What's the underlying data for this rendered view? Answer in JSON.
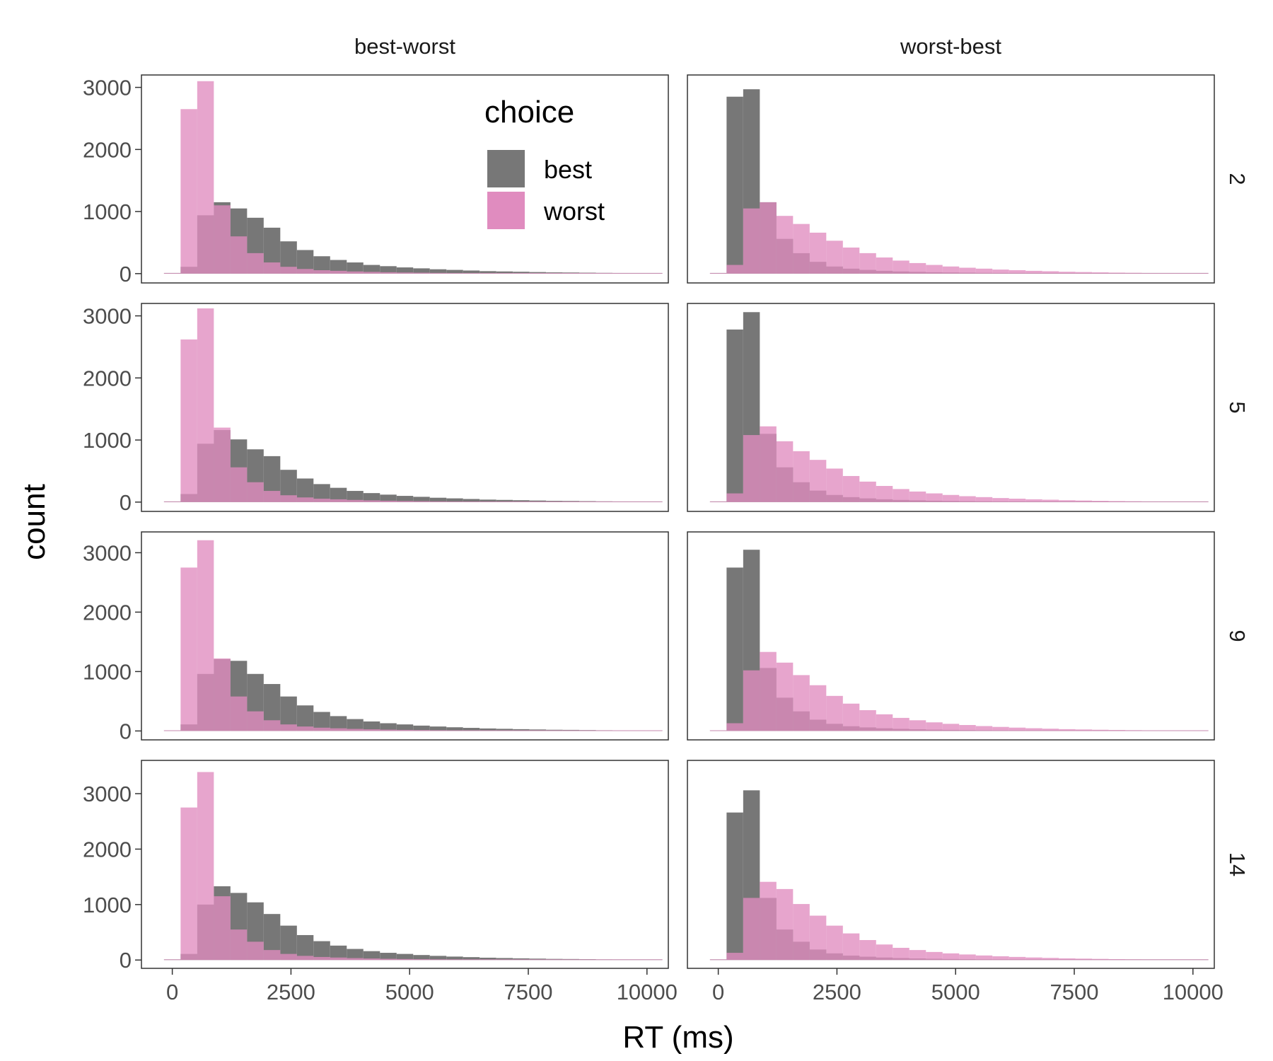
{
  "chart_data": {
    "type": "bar",
    "subtype": "histogram",
    "xlabel": "RT (ms)",
    "ylabel": "count",
    "column_facets": [
      "best-worst",
      "worst-best"
    ],
    "row_facets": [
      "2",
      "5",
      "9",
      "14"
    ],
    "x_ticks": [
      0,
      2500,
      5000,
      7500,
      10000
    ],
    "x_tick_labels": [
      "0",
      "2500",
      "5000",
      "7500",
      "10000"
    ],
    "y_ticks": [
      0,
      1000,
      2000,
      3000
    ],
    "y_tick_labels": [
      "0",
      "1000",
      "2000",
      "3000"
    ],
    "xlim": [
      -650,
      10450
    ],
    "ylim_by_row": [
      [
        -150,
        3200
      ],
      [
        -150,
        3200
      ],
      [
        -150,
        3350
      ],
      [
        -150,
        3600
      ]
    ],
    "bin_edges": [
      -175,
      175,
      525,
      875,
      1225,
      1575,
      1925,
      2275,
      2625,
      2975,
      3325,
      3675,
      4025,
      4375,
      4725,
      5075,
      5425,
      5775,
      6125,
      6475,
      6825,
      7175,
      7525,
      7875,
      8225,
      8575,
      8925,
      9275,
      9625,
      9975,
      10325
    ],
    "grid": false,
    "legend": {
      "title": "choice",
      "position": "inside-top-right",
      "entries": [
        {
          "label": "best",
          "color": "#777777"
        },
        {
          "label": "worst",
          "color": "#e08cbf"
        }
      ]
    },
    "colors": {
      "best": "#777777",
      "worst": "#e08cbf",
      "overlap": "#b35d8e",
      "panel_border": "#333333"
    },
    "panels": [
      {
        "column": "best-worst",
        "row": "2",
        "series": [
          {
            "name": "best",
            "values": [
              0,
              110,
              940,
              1150,
              1050,
              900,
              740,
              520,
              380,
              280,
              220,
              180,
              140,
              120,
              100,
              85,
              70,
              60,
              50,
              40,
              35,
              30,
              25,
              20,
              18,
              15,
              12,
              10,
              8,
              5
            ]
          },
          {
            "name": "worst",
            "values": [
              10,
              2650,
              3100,
              1100,
              600,
              330,
              180,
              110,
              75,
              55,
              45,
              35,
              28,
              22,
              18,
              15,
              12,
              10,
              8,
              6,
              5,
              4,
              3,
              3,
              2,
              2,
              1,
              1,
              1,
              1
            ]
          }
        ]
      },
      {
        "column": "worst-best",
        "row": "2",
        "series": [
          {
            "name": "best",
            "values": [
              10,
              2850,
              2970,
              1150,
              560,
              330,
              190,
              115,
              80,
              60,
              45,
              35,
              28,
              22,
              18,
              15,
              12,
              10,
              8,
              6,
              5,
              4,
              3,
              3,
              2,
              2,
              1,
              1,
              1,
              1
            ]
          },
          {
            "name": "worst",
            "values": [
              0,
              140,
              1050,
              1150,
              930,
              800,
              660,
              530,
              420,
              330,
              260,
              210,
              170,
              140,
              115,
              95,
              80,
              65,
              55,
              45,
              38,
              30,
              25,
              20,
              16,
              13,
              10,
              8,
              6,
              4
            ]
          }
        ]
      },
      {
        "column": "best-worst",
        "row": "5",
        "series": [
          {
            "name": "best",
            "values": [
              0,
              130,
              940,
              1160,
              1010,
              850,
              740,
              520,
              380,
              290,
              230,
              180,
              145,
              120,
              100,
              85,
              70,
              60,
              50,
              40,
              35,
              30,
              25,
              20,
              18,
              15,
              12,
              10,
              8,
              5
            ]
          },
          {
            "name": "worst",
            "values": [
              10,
              2620,
              3120,
              1200,
              560,
              320,
              180,
              110,
              75,
              55,
              45,
              35,
              28,
              22,
              18,
              15,
              12,
              10,
              8,
              6,
              5,
              4,
              3,
              3,
              2,
              2,
              1,
              1,
              1,
              1
            ]
          }
        ]
      },
      {
        "column": "worst-best",
        "row": "5",
        "series": [
          {
            "name": "best",
            "values": [
              10,
              2780,
              3060,
              1100,
              560,
              320,
              185,
              115,
              80,
              60,
              45,
              35,
              28,
              22,
              18,
              15,
              12,
              10,
              8,
              6,
              5,
              4,
              3,
              3,
              2,
              2,
              1,
              1,
              1,
              1
            ]
          },
          {
            "name": "worst",
            "values": [
              0,
              140,
              1080,
              1220,
              980,
              820,
              680,
              540,
              420,
              330,
              260,
              210,
              170,
              140,
              115,
              95,
              80,
              65,
              55,
              45,
              38,
              30,
              25,
              20,
              16,
              13,
              10,
              8,
              6,
              4
            ]
          }
        ]
      },
      {
        "column": "best-worst",
        "row": "9",
        "series": [
          {
            "name": "best",
            "values": [
              0,
              110,
              960,
              1210,
              1180,
              960,
              790,
              580,
              430,
              320,
              250,
              200,
              160,
              130,
              110,
              90,
              75,
              62,
              52,
              42,
              36,
              30,
              25,
              20,
              18,
              15,
              12,
              10,
              8,
              5
            ]
          },
          {
            "name": "worst",
            "values": [
              10,
              2750,
              3210,
              1220,
              580,
              330,
              180,
              110,
              75,
              55,
              45,
              35,
              28,
              22,
              18,
              15,
              12,
              10,
              8,
              6,
              5,
              4,
              3,
              3,
              2,
              2,
              1,
              1,
              1,
              1
            ]
          }
        ]
      },
      {
        "column": "worst-best",
        "row": "9",
        "series": [
          {
            "name": "best",
            "values": [
              10,
              2750,
              3050,
              1060,
              560,
              330,
              190,
              120,
              80,
              60,
              45,
              35,
              28,
              22,
              18,
              15,
              12,
              10,
              8,
              6,
              5,
              4,
              3,
              3,
              2,
              2,
              1,
              1,
              1,
              1
            ]
          },
          {
            "name": "worst",
            "values": [
              0,
              130,
              1020,
              1330,
              1150,
              940,
              770,
              590,
              460,
              350,
              280,
              220,
              180,
              145,
              120,
              100,
              82,
              68,
              56,
              46,
              38,
              30,
              25,
              20,
              16,
              13,
              10,
              8,
              6,
              4
            ]
          }
        ]
      },
      {
        "column": "best-worst",
        "row": "14",
        "series": [
          {
            "name": "best",
            "values": [
              0,
              110,
              1000,
              1330,
              1210,
              1040,
              830,
              620,
              450,
              340,
              260,
              200,
              160,
              130,
              110,
              90,
              75,
              62,
              52,
              42,
              36,
              30,
              25,
              20,
              18,
              15,
              12,
              10,
              8,
              5
            ]
          },
          {
            "name": "worst",
            "values": [
              10,
              2750,
              3390,
              1150,
              550,
              330,
              180,
              110,
              75,
              55,
              45,
              35,
              28,
              22,
              18,
              15,
              12,
              10,
              8,
              6,
              5,
              4,
              3,
              3,
              2,
              2,
              1,
              1,
              1,
              1
            ]
          }
        ]
      },
      {
        "column": "worst-best",
        "row": "14",
        "series": [
          {
            "name": "best",
            "values": [
              10,
              2660,
              3060,
              1120,
              550,
              330,
              190,
              120,
              80,
              60,
              45,
              35,
              28,
              22,
              18,
              15,
              12,
              10,
              8,
              6,
              5,
              4,
              3,
              3,
              2,
              2,
              1,
              1,
              1,
              1
            ]
          },
          {
            "name": "worst",
            "values": [
              0,
              130,
              1120,
              1410,
              1280,
              1010,
              800,
              620,
              480,
              360,
              280,
              220,
              180,
              145,
              120,
              100,
              82,
              68,
              56,
              46,
              38,
              30,
              25,
              20,
              16,
              13,
              10,
              8,
              6,
              4
            ]
          }
        ]
      }
    ]
  }
}
